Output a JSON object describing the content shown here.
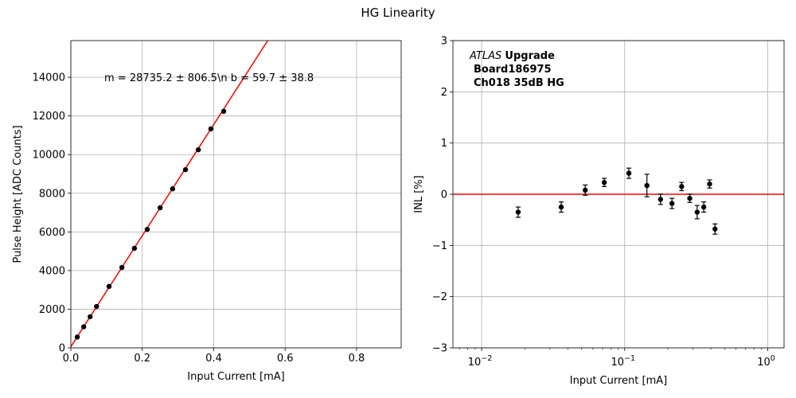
{
  "figure": {
    "title": "HG Linearity"
  },
  "chart_data": [
    {
      "type": "scatter",
      "xlabel": "Input Current [mA]",
      "ylabel": "Pulse Height [ADC Counts]",
      "xlim": [
        0,
        0.925
      ],
      "ylim": [
        0,
        15900
      ],
      "x_ticks": [
        0.0,
        0.2,
        0.4,
        0.6,
        0.8
      ],
      "x_tick_labels": [
        "0.0",
        "0.2",
        "0.4",
        "0.6",
        "0.8"
      ],
      "y_ticks": [
        0,
        2000,
        4000,
        6000,
        8000,
        10000,
        12000,
        14000
      ],
      "y_tick_labels": [
        "0",
        "2000",
        "4000",
        "6000",
        "8000",
        "10000",
        "12000",
        "14000"
      ],
      "grid": true,
      "annotation": "m = 28735.2 ± 806.5\\n b = 59.7 ± 38.8",
      "fit_line": {
        "slope": 28735.2,
        "intercept": 59.7,
        "color": "#ff0000"
      },
      "points": {
        "color": "#000000",
        "x": [
          0.018,
          0.036,
          0.054,
          0.072,
          0.107,
          0.143,
          0.178,
          0.214,
          0.25,
          0.285,
          0.321,
          0.357,
          0.392,
          0.428
        ],
        "y": [
          560,
          1090,
          1610,
          2140,
          3180,
          4160,
          5150,
          6130,
          7250,
          8230,
          9220,
          10250,
          11330,
          12240
        ]
      }
    },
    {
      "type": "scatter",
      "xlabel": "Input Current [mA]",
      "ylabel": "INL [%]",
      "xscale": "log",
      "xlim": [
        0.0063,
        1.3
      ],
      "ylim": [
        -3,
        3
      ],
      "x_ticks": [
        0.01,
        0.1,
        1
      ],
      "x_tick_base": "10",
      "x_tick_exponents": [
        "−2",
        "−1",
        "0"
      ],
      "y_ticks": [
        -3,
        -2,
        -1,
        0,
        1,
        2,
        3
      ],
      "y_tick_labels": [
        "−3",
        "−2",
        "−1",
        "0",
        "1",
        "2",
        "3"
      ],
      "grid": true,
      "annotation": {
        "italic": "ATLAS",
        "bold": "Upgrade",
        "line2": "Board186975",
        "line3": "Ch018 35dB HG"
      },
      "reference_line": {
        "y": 0,
        "color": "#ff0000"
      },
      "points": {
        "color": "#000000",
        "x": [
          0.018,
          0.036,
          0.053,
          0.072,
          0.107,
          0.143,
          0.178,
          0.214,
          0.25,
          0.285,
          0.321,
          0.357,
          0.392,
          0.428
        ],
        "y": [
          -0.35,
          -0.25,
          0.08,
          0.23,
          0.41,
          0.17,
          -0.1,
          -0.18,
          0.15,
          -0.08,
          -0.35,
          -0.25,
          0.2,
          -0.68
        ],
        "yerr": [
          0.1,
          0.1,
          0.1,
          0.08,
          0.1,
          0.22,
          0.1,
          0.1,
          0.08,
          0.08,
          0.13,
          0.1,
          0.08,
          0.1
        ]
      }
    }
  ]
}
